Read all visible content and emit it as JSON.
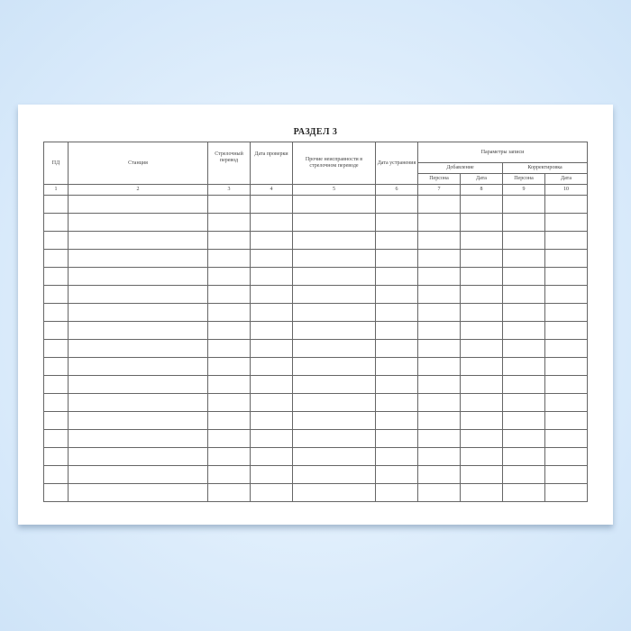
{
  "title": "РАЗДЕЛ   3",
  "headers": {
    "pd": "ПД",
    "station": "Станция",
    "switch": "Стрелочный перевод",
    "check_date": "Дата проверки",
    "other_faults": "Прочие неисправности в стрелочном переводе",
    "fix_date": "Дата устранения",
    "record_params": "Параметры записи",
    "addition": "Добавление",
    "correction": "Корректировка",
    "person1": "Персона",
    "date1": "Дата",
    "person2": "Персона",
    "date2": "Дата"
  },
  "column_numbers": [
    "1",
    "2",
    "3",
    "4",
    "5",
    "6",
    "7",
    "8",
    "9",
    "10"
  ],
  "empty_rows": 17
}
